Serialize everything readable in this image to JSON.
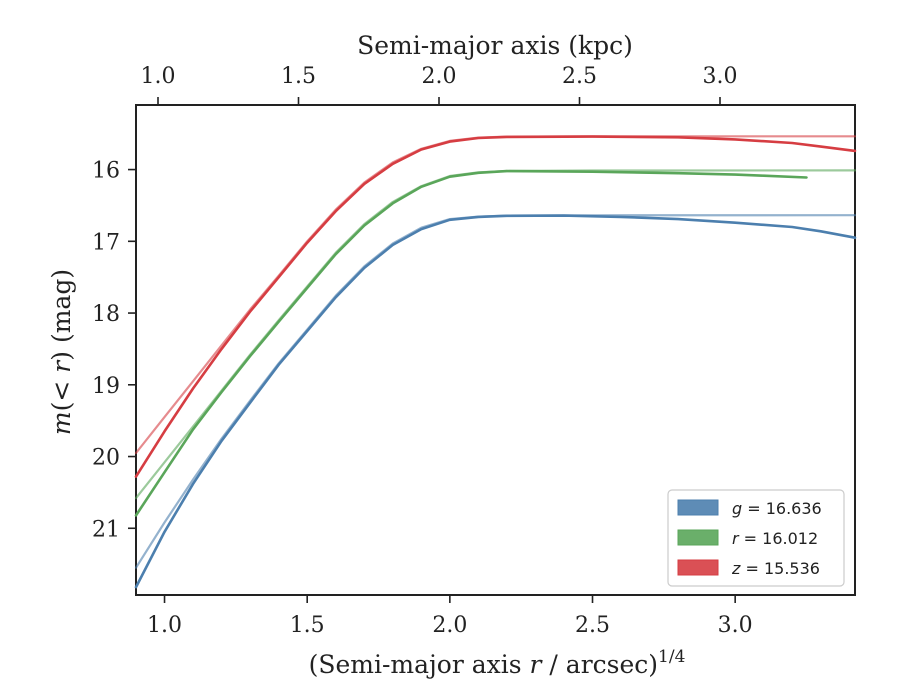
{
  "chart_data": {
    "type": "line",
    "xlabel": "(Semi-major axis r / arcsec)",
    "xlabel_italic": "r",
    "xlabel_sup": "1/4",
    "top_xlabel": "Semi-major axis (kpc)",
    "ylabel": "m(<r) (mag)",
    "xlim": [
      0.9,
      3.42
    ],
    "ylim": [
      21.93,
      15.1
    ],
    "y_inverted": true,
    "bottom_ticks": [
      "1.0",
      "1.5",
      "2.0",
      "2.5",
      "3.0"
    ],
    "top_ticks": [
      "1.0",
      "1.5",
      "2.0",
      "2.5",
      "3.0"
    ],
    "y_ticks": [
      "16",
      "17",
      "18",
      "19",
      "20",
      "21"
    ],
    "legend_position": "lower-right",
    "series": [
      {
        "name": "g = 16.636",
        "band": "g",
        "value": "16.636",
        "color": "#4c7fae",
        "curve": [
          [
            0.9,
            21.82
          ],
          [
            1.0,
            21.05
          ],
          [
            1.1,
            20.38
          ],
          [
            1.2,
            19.78
          ],
          [
            1.3,
            19.25
          ],
          [
            1.4,
            18.72
          ],
          [
            1.5,
            18.25
          ],
          [
            1.6,
            17.78
          ],
          [
            1.7,
            17.37
          ],
          [
            1.8,
            17.05
          ],
          [
            1.9,
            16.83
          ],
          [
            2.0,
            16.7
          ],
          [
            2.1,
            16.66
          ],
          [
            2.2,
            16.645
          ],
          [
            2.4,
            16.642
          ],
          [
            2.6,
            16.66
          ],
          [
            2.8,
            16.69
          ],
          [
            3.0,
            16.74
          ],
          [
            3.2,
            16.8
          ],
          [
            3.3,
            16.86
          ],
          [
            3.42,
            16.95
          ]
        ],
        "model": [
          [
            0.9,
            21.55
          ],
          [
            1.0,
            20.92
          ],
          [
            1.1,
            20.32
          ],
          [
            1.2,
            19.75
          ],
          [
            1.3,
            19.22
          ],
          [
            1.4,
            18.7
          ],
          [
            1.5,
            18.23
          ],
          [
            1.6,
            17.76
          ],
          [
            1.7,
            17.35
          ],
          [
            1.8,
            17.03
          ],
          [
            1.9,
            16.81
          ],
          [
            2.0,
            16.69
          ],
          [
            2.1,
            16.655
          ],
          [
            2.2,
            16.642
          ],
          [
            2.5,
            16.637
          ],
          [
            3.42,
            16.636
          ]
        ]
      },
      {
        "name": "r = 16.012",
        "band": "r",
        "value": "16.012",
        "color": "#5aa65a",
        "curve": [
          [
            0.9,
            20.82
          ],
          [
            1.0,
            20.22
          ],
          [
            1.1,
            19.62
          ],
          [
            1.2,
            19.1
          ],
          [
            1.3,
            18.6
          ],
          [
            1.4,
            18.12
          ],
          [
            1.5,
            17.65
          ],
          [
            1.6,
            17.18
          ],
          [
            1.7,
            16.78
          ],
          [
            1.8,
            16.47
          ],
          [
            1.9,
            16.24
          ],
          [
            2.0,
            16.1
          ],
          [
            2.1,
            16.045
          ],
          [
            2.2,
            16.022
          ],
          [
            2.5,
            16.03
          ],
          [
            2.8,
            16.05
          ],
          [
            3.0,
            16.07
          ],
          [
            3.1,
            16.085
          ],
          [
            3.25,
            16.11
          ]
        ],
        "model": [
          [
            0.9,
            20.58
          ],
          [
            1.0,
            20.08
          ],
          [
            1.1,
            19.58
          ],
          [
            1.2,
            19.08
          ],
          [
            1.3,
            18.58
          ],
          [
            1.4,
            18.1
          ],
          [
            1.5,
            17.63
          ],
          [
            1.6,
            17.16
          ],
          [
            1.7,
            16.76
          ],
          [
            1.8,
            16.45
          ],
          [
            1.9,
            16.23
          ],
          [
            2.0,
            16.09
          ],
          [
            2.1,
            16.04
          ],
          [
            2.2,
            16.02
          ],
          [
            2.5,
            16.013
          ],
          [
            3.42,
            16.012
          ]
        ]
      },
      {
        "name": "z = 15.536",
        "band": "z",
        "value": "15.536",
        "color": "#d63d42",
        "curve": [
          [
            0.9,
            20.28
          ],
          [
            1.0,
            19.65
          ],
          [
            1.1,
            19.05
          ],
          [
            1.2,
            18.5
          ],
          [
            1.3,
            17.98
          ],
          [
            1.4,
            17.5
          ],
          [
            1.5,
            17.02
          ],
          [
            1.6,
            16.58
          ],
          [
            1.7,
            16.2
          ],
          [
            1.8,
            15.92
          ],
          [
            1.9,
            15.72
          ],
          [
            2.0,
            15.61
          ],
          [
            2.1,
            15.56
          ],
          [
            2.2,
            15.545
          ],
          [
            2.5,
            15.54
          ],
          [
            2.8,
            15.55
          ],
          [
            3.0,
            15.58
          ],
          [
            3.2,
            15.63
          ],
          [
            3.3,
            15.68
          ],
          [
            3.42,
            15.74
          ]
        ],
        "model": [
          [
            0.9,
            19.95
          ],
          [
            1.0,
            19.45
          ],
          [
            1.1,
            18.95
          ],
          [
            1.2,
            18.45
          ],
          [
            1.3,
            17.95
          ],
          [
            1.4,
            17.48
          ],
          [
            1.5,
            17.0
          ],
          [
            1.6,
            16.56
          ],
          [
            1.7,
            16.18
          ],
          [
            1.8,
            15.9
          ],
          [
            1.9,
            15.71
          ],
          [
            2.0,
            15.6
          ],
          [
            2.1,
            15.555
          ],
          [
            2.2,
            15.54
          ],
          [
            2.5,
            15.537
          ],
          [
            3.42,
            15.536
          ]
        ]
      }
    ]
  }
}
